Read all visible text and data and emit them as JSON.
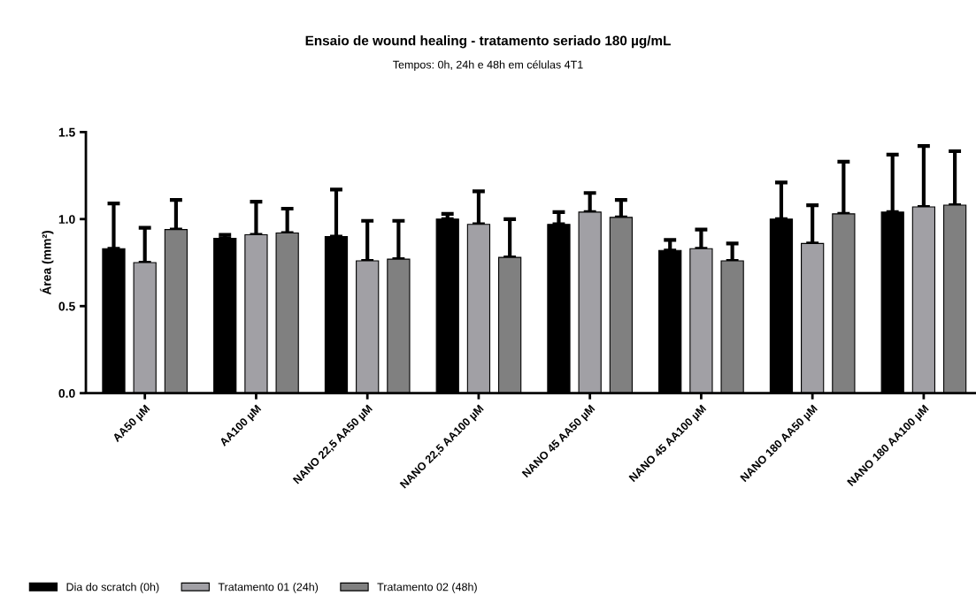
{
  "chart_data": {
    "type": "bar",
    "title": "Ensaio de wound healing - tratamento seriado 180 µg/mL",
    "subtitle": "Tempos: 0h, 24h e 48h em células 4T1",
    "ylabel": "Área (mm²)",
    "categories": [
      "AA50 µM",
      "AA100 µM",
      "NANO 22,5 AA50 µM",
      "NANO 22,5 AA100 µM",
      "NANO 45 AA50 µM",
      "NANO 45 AA100 µM",
      "NANO 180 AA50 µM",
      "NANO 180 AA100 µM"
    ],
    "series": [
      {
        "name": "Dia do scratch (0h)",
        "color": "#000000",
        "values": [
          0.83,
          0.89,
          0.9,
          1.0,
          0.97,
          0.82,
          1.0,
          1.04
        ],
        "errors": [
          [
            0.83,
            1.09
          ],
          [
            0.89,
            0.91
          ],
          [
            0.9,
            1.17
          ],
          [
            1.0,
            1.03
          ],
          [
            0.97,
            1.04
          ],
          [
            0.82,
            0.88
          ],
          [
            1.0,
            1.21
          ],
          [
            1.04,
            1.37
          ]
        ]
      },
      {
        "name": "Tratamento 01 (24h)",
        "color": "#a1a0a5",
        "values": [
          0.75,
          0.91,
          0.76,
          0.97,
          1.04,
          0.83,
          0.86,
          1.07
        ],
        "errors": [
          [
            0.75,
            0.95
          ],
          [
            0.91,
            1.1
          ],
          [
            0.76,
            0.99
          ],
          [
            0.97,
            1.16
          ],
          [
            1.04,
            1.15
          ],
          [
            0.83,
            0.94
          ],
          [
            0.86,
            1.08
          ],
          [
            1.07,
            1.42
          ]
        ]
      },
      {
        "name": "Tratamento 02 (48h)",
        "color": "#808080",
        "values": [
          0.94,
          0.92,
          0.77,
          0.78,
          1.01,
          0.76,
          1.03,
          1.08
        ],
        "errors": [
          [
            0.94,
            1.11
          ],
          [
            0.92,
            1.06
          ],
          [
            0.77,
            0.99
          ],
          [
            0.78,
            1.0
          ],
          [
            1.01,
            1.11
          ],
          [
            0.76,
            0.86
          ],
          [
            1.03,
            1.33
          ],
          [
            1.08,
            1.39
          ]
        ]
      }
    ],
    "ylim": [
      0,
      1.5
    ],
    "yticks": [
      {
        "value": 0,
        "label": "0.0"
      },
      {
        "value": 0.5,
        "label": "0.5"
      },
      {
        "value": 1.0,
        "label": "1.0"
      },
      {
        "value": 1.5,
        "label": "1.5"
      }
    ],
    "grid": false,
    "legend": "bottom left"
  }
}
